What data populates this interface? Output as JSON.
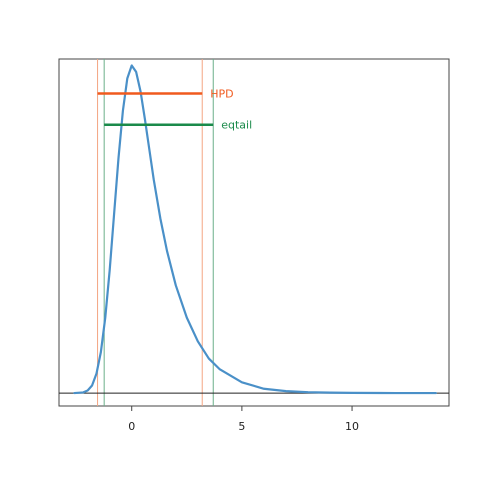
{
  "chart_data": {
    "type": "line",
    "title": "",
    "xlabel": "",
    "ylabel": "",
    "xlim": [
      -3.3,
      14.4
    ],
    "ylim": [
      -0.006,
      0.155
    ],
    "x_ticks": [
      0,
      5,
      10
    ],
    "x_tick_labels": [
      "0",
      "5",
      "10"
    ],
    "grid": false,
    "baseline_y": 0,
    "series": [
      {
        "color": "#4a90c8",
        "x": [
          -2.6,
          -2.2,
          -2.0,
          -1.8,
          -1.6,
          -1.4,
          -1.2,
          -1.0,
          -0.8,
          -0.6,
          -0.4,
          -0.2,
          0.0,
          0.2,
          0.4,
          0.6,
          0.8,
          1.0,
          1.3,
          1.6,
          2.0,
          2.5,
          3.0,
          3.5,
          4.0,
          5.0,
          6.0,
          7.0,
          8.0,
          9.0,
          10.0,
          12.0,
          13.8
        ],
        "y": [
          0.0,
          0.0003,
          0.0012,
          0.0035,
          0.009,
          0.019,
          0.035,
          0.057,
          0.083,
          0.109,
          0.131,
          0.146,
          0.152,
          0.149,
          0.14,
          0.127,
          0.113,
          0.099,
          0.081,
          0.066,
          0.05,
          0.035,
          0.024,
          0.016,
          0.011,
          0.005,
          0.002,
          0.0009,
          0.0004,
          0.0002,
          0.0001,
          0.0,
          0.0
        ]
      }
    ],
    "intervals": [
      {
        "label": "HPD",
        "color": "#f05a1e",
        "lower": -1.55,
        "upper": 3.2,
        "y": 0.139,
        "line_color": "#f4a582"
      },
      {
        "label": "eqtail",
        "color": "#1a8a4a",
        "lower": -1.25,
        "upper": 3.7,
        "y": 0.1245,
        "line_color": "#6aaf8a"
      }
    ]
  }
}
